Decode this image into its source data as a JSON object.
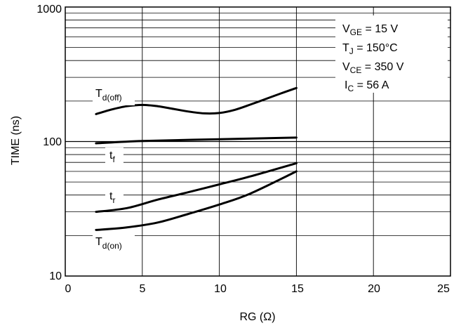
{
  "chart_data": {
    "type": "line",
    "xlabel": "RG (Ω)",
    "ylabel": "TIME (ns)",
    "xlim": [
      0,
      25
    ],
    "ylim": [
      10,
      1000
    ],
    "y_scale": "log",
    "grid": true,
    "x_ticks": [
      "0",
      "5",
      "10",
      "15",
      "20",
      "25"
    ],
    "y_ticks": [
      "10",
      "100",
      "1000"
    ],
    "conditions": [
      {
        "base": "V",
        "sub": "GE",
        "rest": " = 15 V"
      },
      {
        "base": "T",
        "sub": "J",
        "rest": " = 150°C"
      },
      {
        "base": "V",
        "sub": "CE",
        "rest": " = 350 V"
      },
      {
        "base": "I",
        "sub": "C",
        "rest": " = 56 A"
      }
    ],
    "series": [
      {
        "name": "Td(off)",
        "label_base": "T",
        "label_sub": "d(off)",
        "x": [
          2,
          3,
          4,
          5,
          6,
          7,
          8,
          9,
          10,
          11,
          12,
          13,
          14,
          15
        ],
        "y": [
          160,
          173,
          183,
          187,
          183,
          175,
          167,
          162,
          163,
          172,
          188,
          207,
          228,
          250
        ]
      },
      {
        "name": "tf",
        "label_base": "t",
        "label_sub": "f",
        "x": [
          2,
          5,
          10,
          15
        ],
        "y": [
          97,
          101,
          104,
          107
        ]
      },
      {
        "name": "tr",
        "label_base": "t",
        "label_sub": "r",
        "x": [
          2,
          4,
          6,
          8,
          10,
          12,
          15
        ],
        "y": [
          30,
          32,
          37,
          42,
          48,
          55,
          69
        ]
      },
      {
        "name": "Td(on)",
        "label_base": "T",
        "label_sub": "d(on)",
        "x": [
          2,
          4,
          6,
          8,
          10,
          12,
          15
        ],
        "y": [
          22,
          23,
          25,
          29,
          34,
          41,
          60
        ]
      }
    ]
  }
}
